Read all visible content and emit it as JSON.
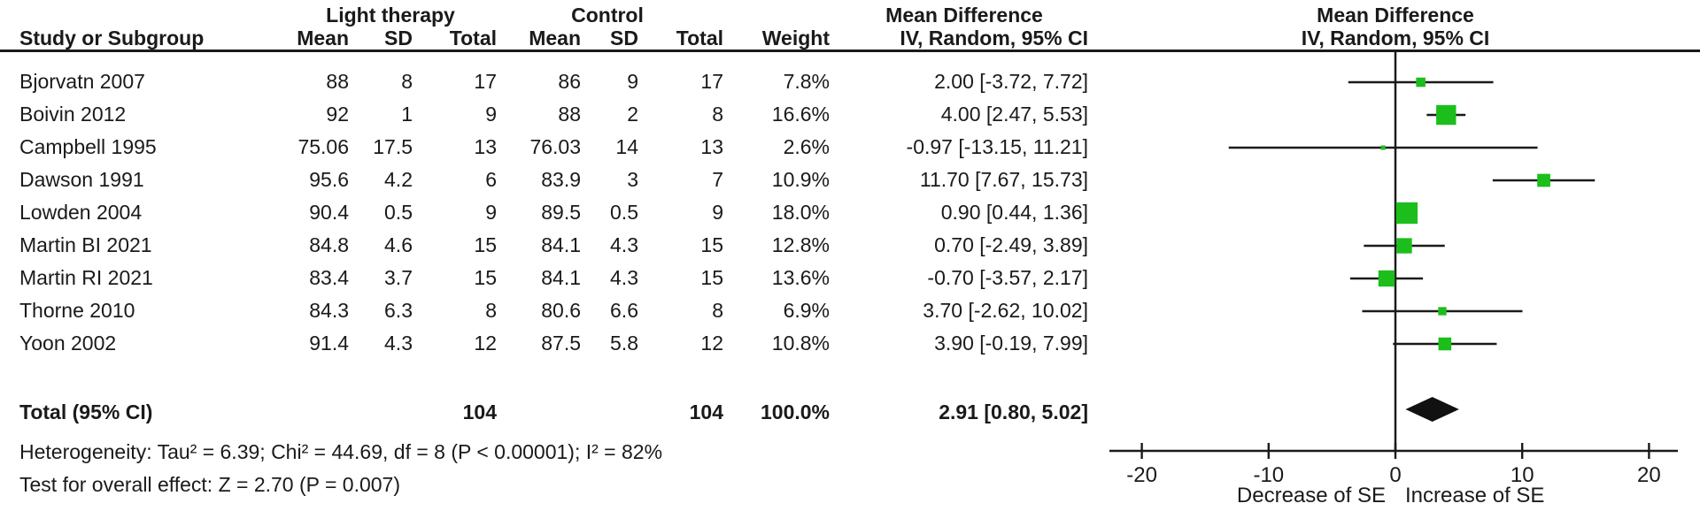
{
  "header": {
    "group1": "Light therapy",
    "group2": "Control",
    "study_col": "Study or Subgroup",
    "cols": [
      "Mean",
      "SD",
      "Total",
      "Mean",
      "SD",
      "Total",
      "Weight"
    ],
    "effect_title": "Mean Difference",
    "effect_subtitle": "IV, Random, 95% CI",
    "plot_title": "Mean Difference",
    "plot_subtitle": "IV, Random, 95% CI"
  },
  "chart_data": {
    "type": "scatter",
    "subtype": "forest-plot-mean-difference",
    "model": "IV, Random, 95% CI",
    "x_axis": {
      "min": -20,
      "max": 20,
      "ticks": [
        -20,
        -10,
        0,
        10,
        20
      ],
      "label_negative": "Decrease of SE",
      "label_positive": "Increase of SE"
    },
    "studies": [
      {
        "name": "Bjorvatn 2007",
        "lt_mean": 88,
        "lt_sd": 8,
        "lt_total": 17,
        "c_mean": 86,
        "c_sd": 9,
        "c_total": 17,
        "weight": 7.8,
        "weight_label": "7.8%",
        "md": 2.0,
        "ci_low": -3.72,
        "ci_high": 7.72,
        "ci_label": "2.00 [-3.72, 7.72]"
      },
      {
        "name": "Boivin 2012",
        "lt_mean": 92,
        "lt_sd": 1,
        "lt_total": 9,
        "c_mean": 88,
        "c_sd": 2,
        "c_total": 8,
        "weight": 16.6,
        "weight_label": "16.6%",
        "md": 4.0,
        "ci_low": 2.47,
        "ci_high": 5.53,
        "ci_label": "4.00 [2.47, 5.53]"
      },
      {
        "name": "Campbell 1995",
        "lt_mean": 75.06,
        "lt_sd": 17.5,
        "lt_total": 13,
        "c_mean": 76.03,
        "c_sd": 14,
        "c_total": 13,
        "weight": 2.6,
        "weight_label": "2.6%",
        "md": -0.97,
        "ci_low": -13.15,
        "ci_high": 11.21,
        "ci_label": "-0.97 [-13.15, 11.21]"
      },
      {
        "name": "Dawson 1991",
        "lt_mean": 95.6,
        "lt_sd": 4.2,
        "lt_total": 6,
        "c_mean": 83.9,
        "c_sd": 3,
        "c_total": 7,
        "weight": 10.9,
        "weight_label": "10.9%",
        "md": 11.7,
        "ci_low": 7.67,
        "ci_high": 15.73,
        "ci_label": "11.70 [7.67, 15.73]"
      },
      {
        "name": "Lowden 2004",
        "lt_mean": 90.4,
        "lt_sd": 0.5,
        "lt_total": 9,
        "c_mean": 89.5,
        "c_sd": 0.5,
        "c_total": 9,
        "weight": 18.0,
        "weight_label": "18.0%",
        "md": 0.9,
        "ci_low": 0.44,
        "ci_high": 1.36,
        "ci_label": "0.90 [0.44, 1.36]"
      },
      {
        "name": "Martin BI 2021",
        "lt_mean": 84.8,
        "lt_sd": 4.6,
        "lt_total": 15,
        "c_mean": 84.1,
        "c_sd": 4.3,
        "c_total": 15,
        "weight": 12.8,
        "weight_label": "12.8%",
        "md": 0.7,
        "ci_low": -2.49,
        "ci_high": 3.89,
        "ci_label": "0.70 [-2.49, 3.89]"
      },
      {
        "name": "Martin RI 2021",
        "lt_mean": 83.4,
        "lt_sd": 3.7,
        "lt_total": 15,
        "c_mean": 84.1,
        "c_sd": 4.3,
        "c_total": 15,
        "weight": 13.6,
        "weight_label": "13.6%",
        "md": -0.7,
        "ci_low": -3.57,
        "ci_high": 2.17,
        "ci_label": "-0.70 [-3.57, 2.17]"
      },
      {
        "name": "Thorne 2010",
        "lt_mean": 84.3,
        "lt_sd": 6.3,
        "lt_total": 8,
        "c_mean": 80.6,
        "c_sd": 6.6,
        "c_total": 8,
        "weight": 6.9,
        "weight_label": "6.9%",
        "md": 3.7,
        "ci_low": -2.62,
        "ci_high": 10.02,
        "ci_label": "3.70 [-2.62, 10.02]"
      },
      {
        "name": "Yoon 2002",
        "lt_mean": 91.4,
        "lt_sd": 4.3,
        "lt_total": 12,
        "c_mean": 87.5,
        "c_sd": 5.8,
        "c_total": 12,
        "weight": 10.8,
        "weight_label": "10.8%",
        "md": 3.9,
        "ci_low": -0.19,
        "ci_high": 7.99,
        "ci_label": "3.90 [-0.19, 7.99]"
      }
    ],
    "total": {
      "label": "Total (95% CI)",
      "lt_total": 104,
      "c_total": 104,
      "weight_label": "100.0%",
      "md": 2.91,
      "ci_low": 0.8,
      "ci_high": 5.02,
      "ci_label": "2.91 [0.80, 5.02]"
    }
  },
  "footnotes": {
    "heterogeneity": "Heterogeneity: Tau² = 6.39; Chi² = 44.69, df = 8 (P < 0.00001); I² = 82%",
    "overall_effect": "Test for overall effect: Z = 2.70 (P = 0.007)"
  },
  "colors": {
    "marker_green": "#1CBE1C",
    "diamond_black": "#111111",
    "line_black": "#1a1a1a"
  }
}
